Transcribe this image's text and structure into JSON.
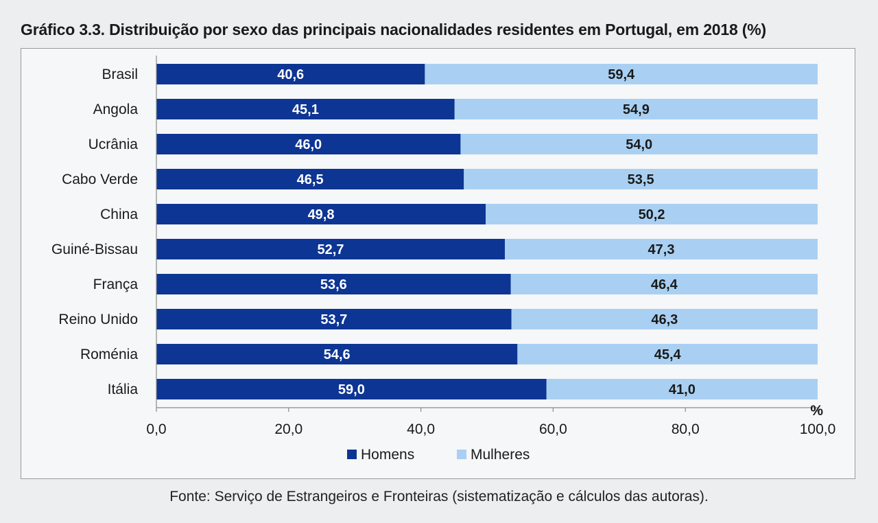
{
  "chart_data": {
    "type": "bar",
    "orientation": "horizontal",
    "stacked": true,
    "title": "Gráfico 3.3. Distribuição por sexo das principais nacionalidades residentes em Portugal, em 2018 (%)",
    "categories": [
      "Brasil",
      "Angola",
      "Ucrânia",
      "Cabo Verde",
      "China",
      "Guiné-Bissau",
      "França",
      "Reino Unido",
      "Roménia",
      "Itália"
    ],
    "series": [
      {
        "name": "Homens",
        "color": "#0d3593",
        "values": [
          40.6,
          45.1,
          46.0,
          46.5,
          49.8,
          52.7,
          53.6,
          53.7,
          54.6,
          59.0
        ],
        "labels": [
          "40,6",
          "45,1",
          "46,0",
          "46,5",
          "49,8",
          "52,7",
          "53,6",
          "53,7",
          "54,6",
          "59,0"
        ]
      },
      {
        "name": "Mulheres",
        "color": "#a9d0f2",
        "values": [
          59.4,
          54.9,
          54.0,
          53.5,
          50.2,
          47.3,
          46.4,
          46.3,
          45.4,
          41.0
        ],
        "labels": [
          "59,4",
          "54,9",
          "54,0",
          "53,5",
          "50,2",
          "47,3",
          "46,4",
          "46,3",
          "45,4",
          "41,0"
        ]
      }
    ],
    "xlim": [
      0,
      100
    ],
    "xticks": [
      "0,0",
      "20,0",
      "40,0",
      "60,0",
      "80,0",
      "100,0"
    ],
    "xunit": "%",
    "grid": false,
    "legend_position": "bottom",
    "source": "Fonte: Serviço de Estrangeiros e Fronteiras (sistematização e cálculos das autoras)."
  }
}
